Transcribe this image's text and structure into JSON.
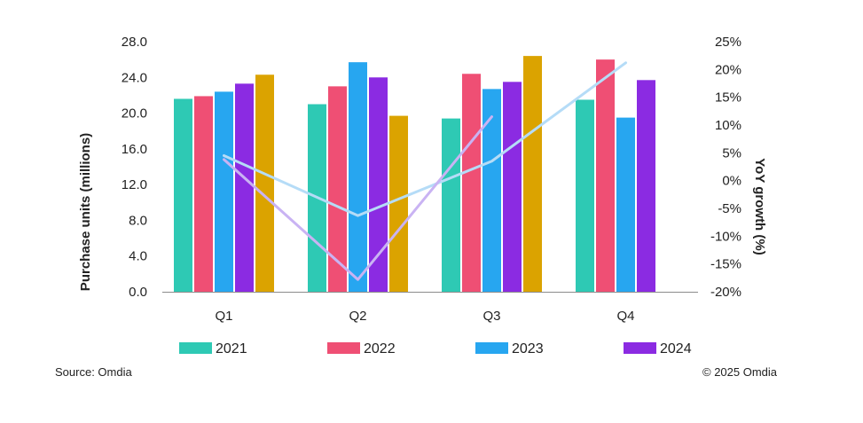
{
  "chart_data": {
    "type": "bar",
    "categories": [
      "Q1",
      "Q2",
      "Q3",
      "Q4"
    ],
    "bar_series": [
      {
        "name": "2021",
        "color": "#2ec9b4",
        "values": [
          21.6,
          21.0,
          19.4,
          21.5
        ]
      },
      {
        "name": "2022",
        "color": "#ef4f74",
        "values": [
          21.9,
          23.0,
          24.4,
          26.0
        ]
      },
      {
        "name": "2023",
        "color": "#27a6f0",
        "values": [
          22.4,
          25.7,
          22.7,
          19.5
        ]
      },
      {
        "name": "2024",
        "color": "#8b2be2",
        "values": [
          23.3,
          24.0,
          23.5,
          23.7
        ]
      },
      {
        "color": "#dba300",
        "values": [
          24.3,
          19.7,
          26.4,
          null
        ]
      }
    ],
    "line_series": [
      {
        "color": "#b5dcf7",
        "values": [
          4.5,
          -6.3,
          3.5,
          21.2
        ]
      },
      {
        "color": "#c9b3f3",
        "values": [
          3.8,
          -17.8,
          11.5,
          null
        ]
      }
    ],
    "y_left": {
      "title": "Purchase units (millions)",
      "ticks": [
        "0.0",
        "4.0",
        "8.0",
        "12.0",
        "16.0",
        "20.0",
        "24.0",
        "28.0"
      ],
      "range": [
        0,
        28
      ]
    },
    "y_right": {
      "title": "YoY growth (%)",
      "ticks": [
        "-20%",
        "-15%",
        "-10%",
        "-5%",
        "0%",
        "5%",
        "10%",
        "15%",
        "20%",
        "25%"
      ],
      "range": [
        -20,
        25
      ]
    },
    "legend_placement": "bottom",
    "grid": false
  },
  "footer": {
    "source": "Source: Omdia",
    "copyright": "© 2025 Omdia"
  }
}
